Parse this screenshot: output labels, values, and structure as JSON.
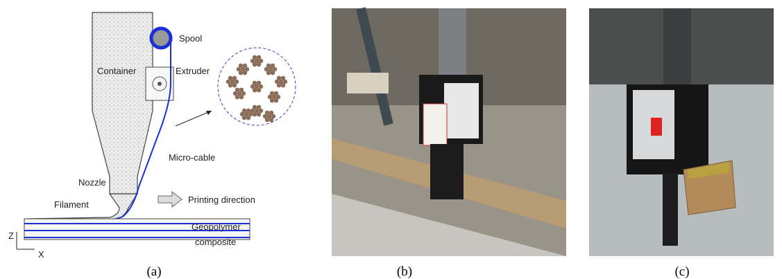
{
  "diagram": {
    "labels": {
      "spool": "Spool",
      "container": "Container",
      "extruder": "Extruder",
      "micro_cable": "Micro-cable",
      "nozzle": "Nozzle",
      "filament": "Filament",
      "printing_direction": "Printing direction",
      "geopolymer_line1": "Geopolymer",
      "geopolymer_line2": "composite",
      "axis_z": "Z",
      "axis_x": "X"
    }
  },
  "captions": [
    "(a)",
    "(b)",
    "(c)"
  ]
}
